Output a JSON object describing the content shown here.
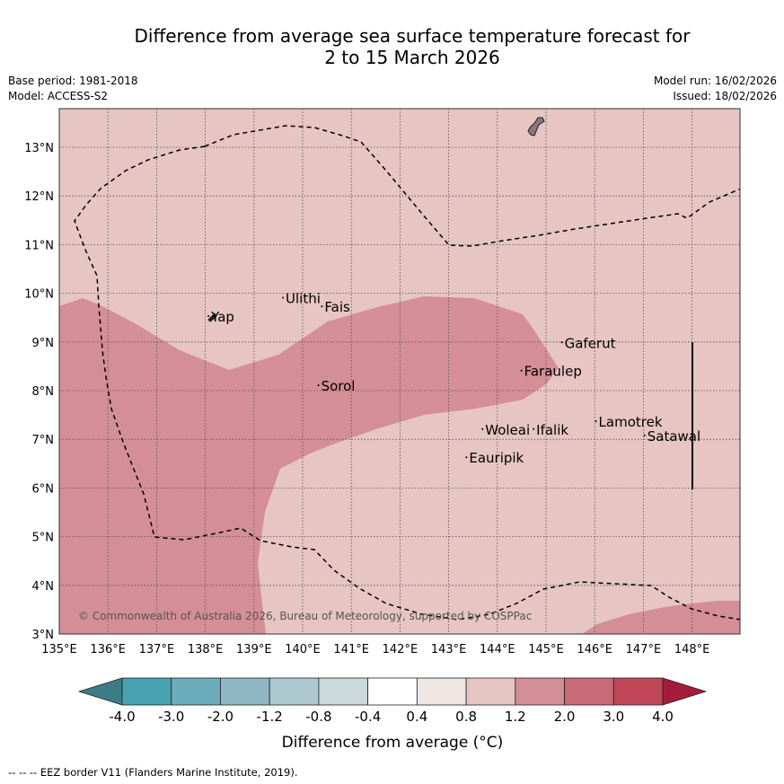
{
  "title_line1": "Difference from average sea surface temperature forecast for",
  "title_line2": "2 to 15 March 2026",
  "meta_left": {
    "base_period": "Base period: 1981-2018",
    "model": "Model: ACCESS-S2"
  },
  "meta_right": {
    "model_run": "Model run: 16/02/2026",
    "issued": "Issued: 18/02/2026"
  },
  "colors": {
    "background_band": "#e6c5c2",
    "warm_band": "#d48e96",
    "grid": "#555555",
    "land": "#8a7878"
  },
  "axes": {
    "lon_ticks": [
      "135°E",
      "136°E",
      "137°E",
      "138°E",
      "139°E",
      "140°E",
      "141°E",
      "142°E",
      "143°E",
      "144°E",
      "145°E",
      "146°E",
      "147°E",
      "148°E"
    ],
    "lat_ticks": [
      "13°N",
      "12°N",
      "11°N",
      "10°N",
      "9°N",
      "8°N",
      "7°N",
      "6°N",
      "5°N",
      "4°N",
      "3°N"
    ]
  },
  "places": [
    {
      "name": "Ulithi",
      "lon": 139.65,
      "lat": 9.8
    },
    {
      "name": "Fais",
      "lon": 140.45,
      "lat": 9.62
    },
    {
      "name": "Yap",
      "lon": 138.12,
      "lat": 9.42
    },
    {
      "name": "Gaferut",
      "lon": 145.38,
      "lat": 8.88
    },
    {
      "name": "Faraulep",
      "lon": 144.55,
      "lat": 8.3
    },
    {
      "name": "Sorol",
      "lon": 140.38,
      "lat": 8.0
    },
    {
      "name": "Lamotrek",
      "lon": 146.08,
      "lat": 7.26
    },
    {
      "name": "Woleai",
      "lon": 143.75,
      "lat": 7.1
    },
    {
      "name": "Ifalik",
      "lon": 144.8,
      "lat": 7.1
    },
    {
      "name": "Satawal",
      "lon": 147.08,
      "lat": 6.97
    },
    {
      "name": "Eauripik",
      "lon": 143.42,
      "lat": 6.52
    }
  ],
  "copyright": "© Commonwealth of Australia 2026, Bureau of Meteorology, supported by COSPPac",
  "colorbar": {
    "ticks": [
      "-4.0",
      "-3.0",
      "-2.0",
      "-1.2",
      "-0.8",
      "-0.4",
      "0.4",
      "0.8",
      "1.2",
      "2.0",
      "3.0",
      "4.0"
    ],
    "colors": [
      "#3d7c85",
      "#48a2b2",
      "#6cacbb",
      "#8fb6c4",
      "#abc8cf",
      "#c9d9dc",
      "#ffffff",
      "#efe6e3",
      "#e6c5c2",
      "#d48e96",
      "#c96a76",
      "#bf4656",
      "#a51c3b"
    ],
    "label": "Difference from average (°C)"
  },
  "footer": "-- -- -- EEZ border V11 (Flanders Marine Institute, 2019)."
}
